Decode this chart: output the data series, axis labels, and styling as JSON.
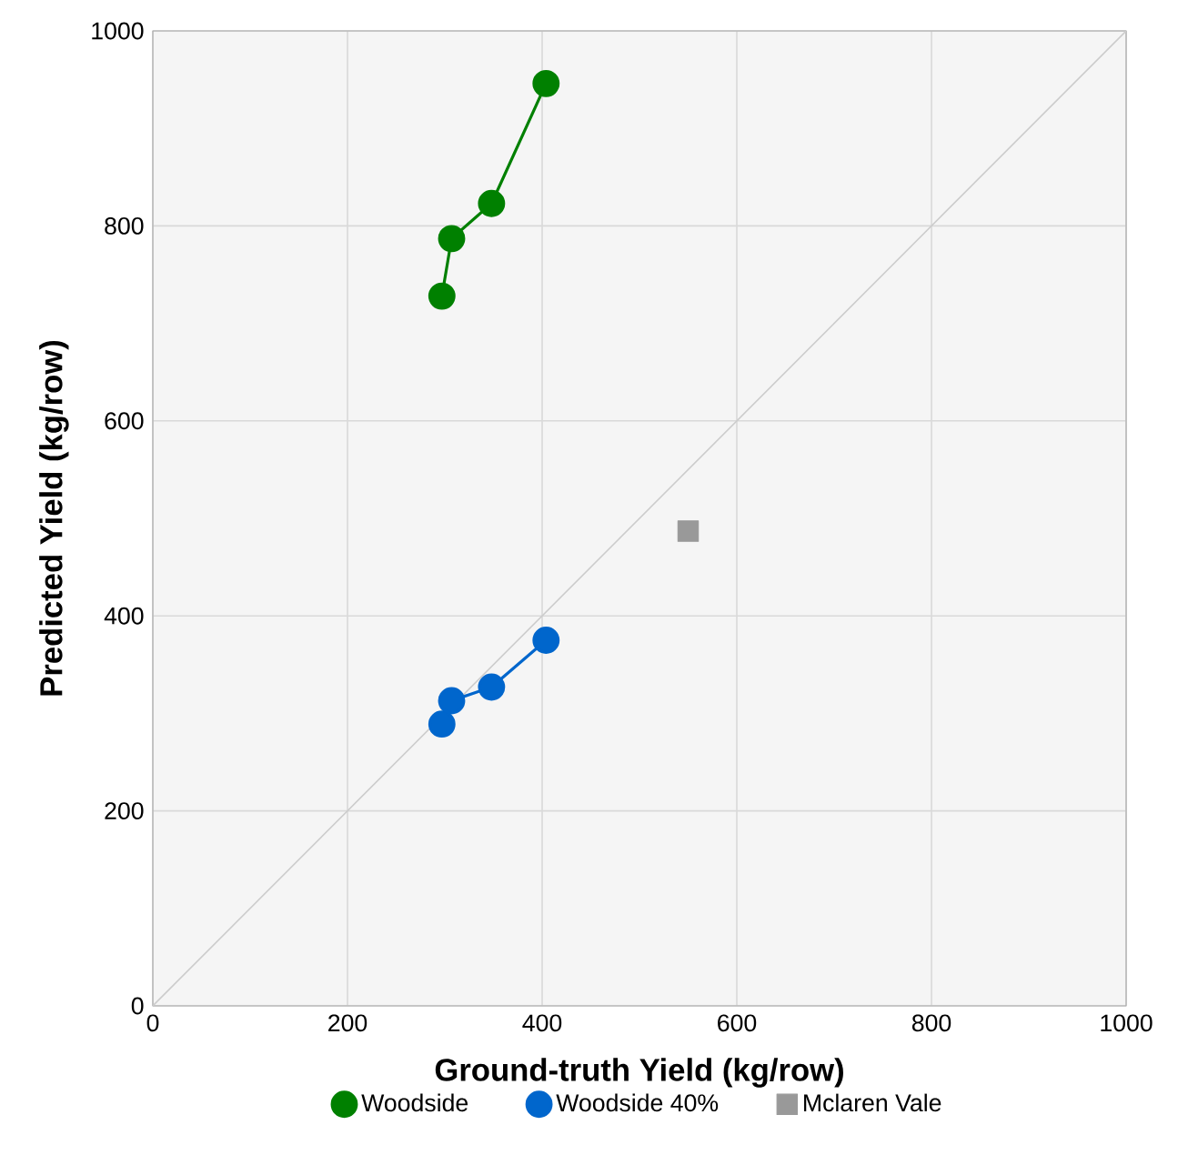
{
  "chart_data": {
    "type": "scatter",
    "xlabel": "Ground-truth Yield (kg/row)",
    "ylabel": "Predicted Yield (kg/row)",
    "xlim": [
      0,
      1000
    ],
    "ylim": [
      0,
      1000
    ],
    "xticks": [
      0,
      200,
      400,
      600,
      800,
      1000
    ],
    "yticks": [
      0,
      200,
      400,
      600,
      800,
      1000
    ],
    "grid": true,
    "legend": "bottom",
    "series": [
      {
        "type": "line",
        "color": "#cccccc",
        "marker": "none",
        "x": [
          0,
          1000
        ],
        "values": [
          0,
          1000
        ]
      },
      {
        "name": "Woodside",
        "type": "line",
        "color": "#008000",
        "marker": "circle",
        "x": [
          297,
          307,
          348,
          404
        ],
        "values": [
          728,
          787,
          823,
          946
        ]
      },
      {
        "name": "Woodside 40%",
        "type": "line",
        "color": "#0066cc",
        "marker": "circle",
        "x": [
          297,
          307,
          348,
          404
        ],
        "values": [
          289,
          313,
          327,
          375
        ]
      },
      {
        "name": "Mclaren Vale",
        "color": "#999999",
        "marker": "square",
        "x": [
          550
        ],
        "values": [
          487
        ]
      }
    ]
  }
}
